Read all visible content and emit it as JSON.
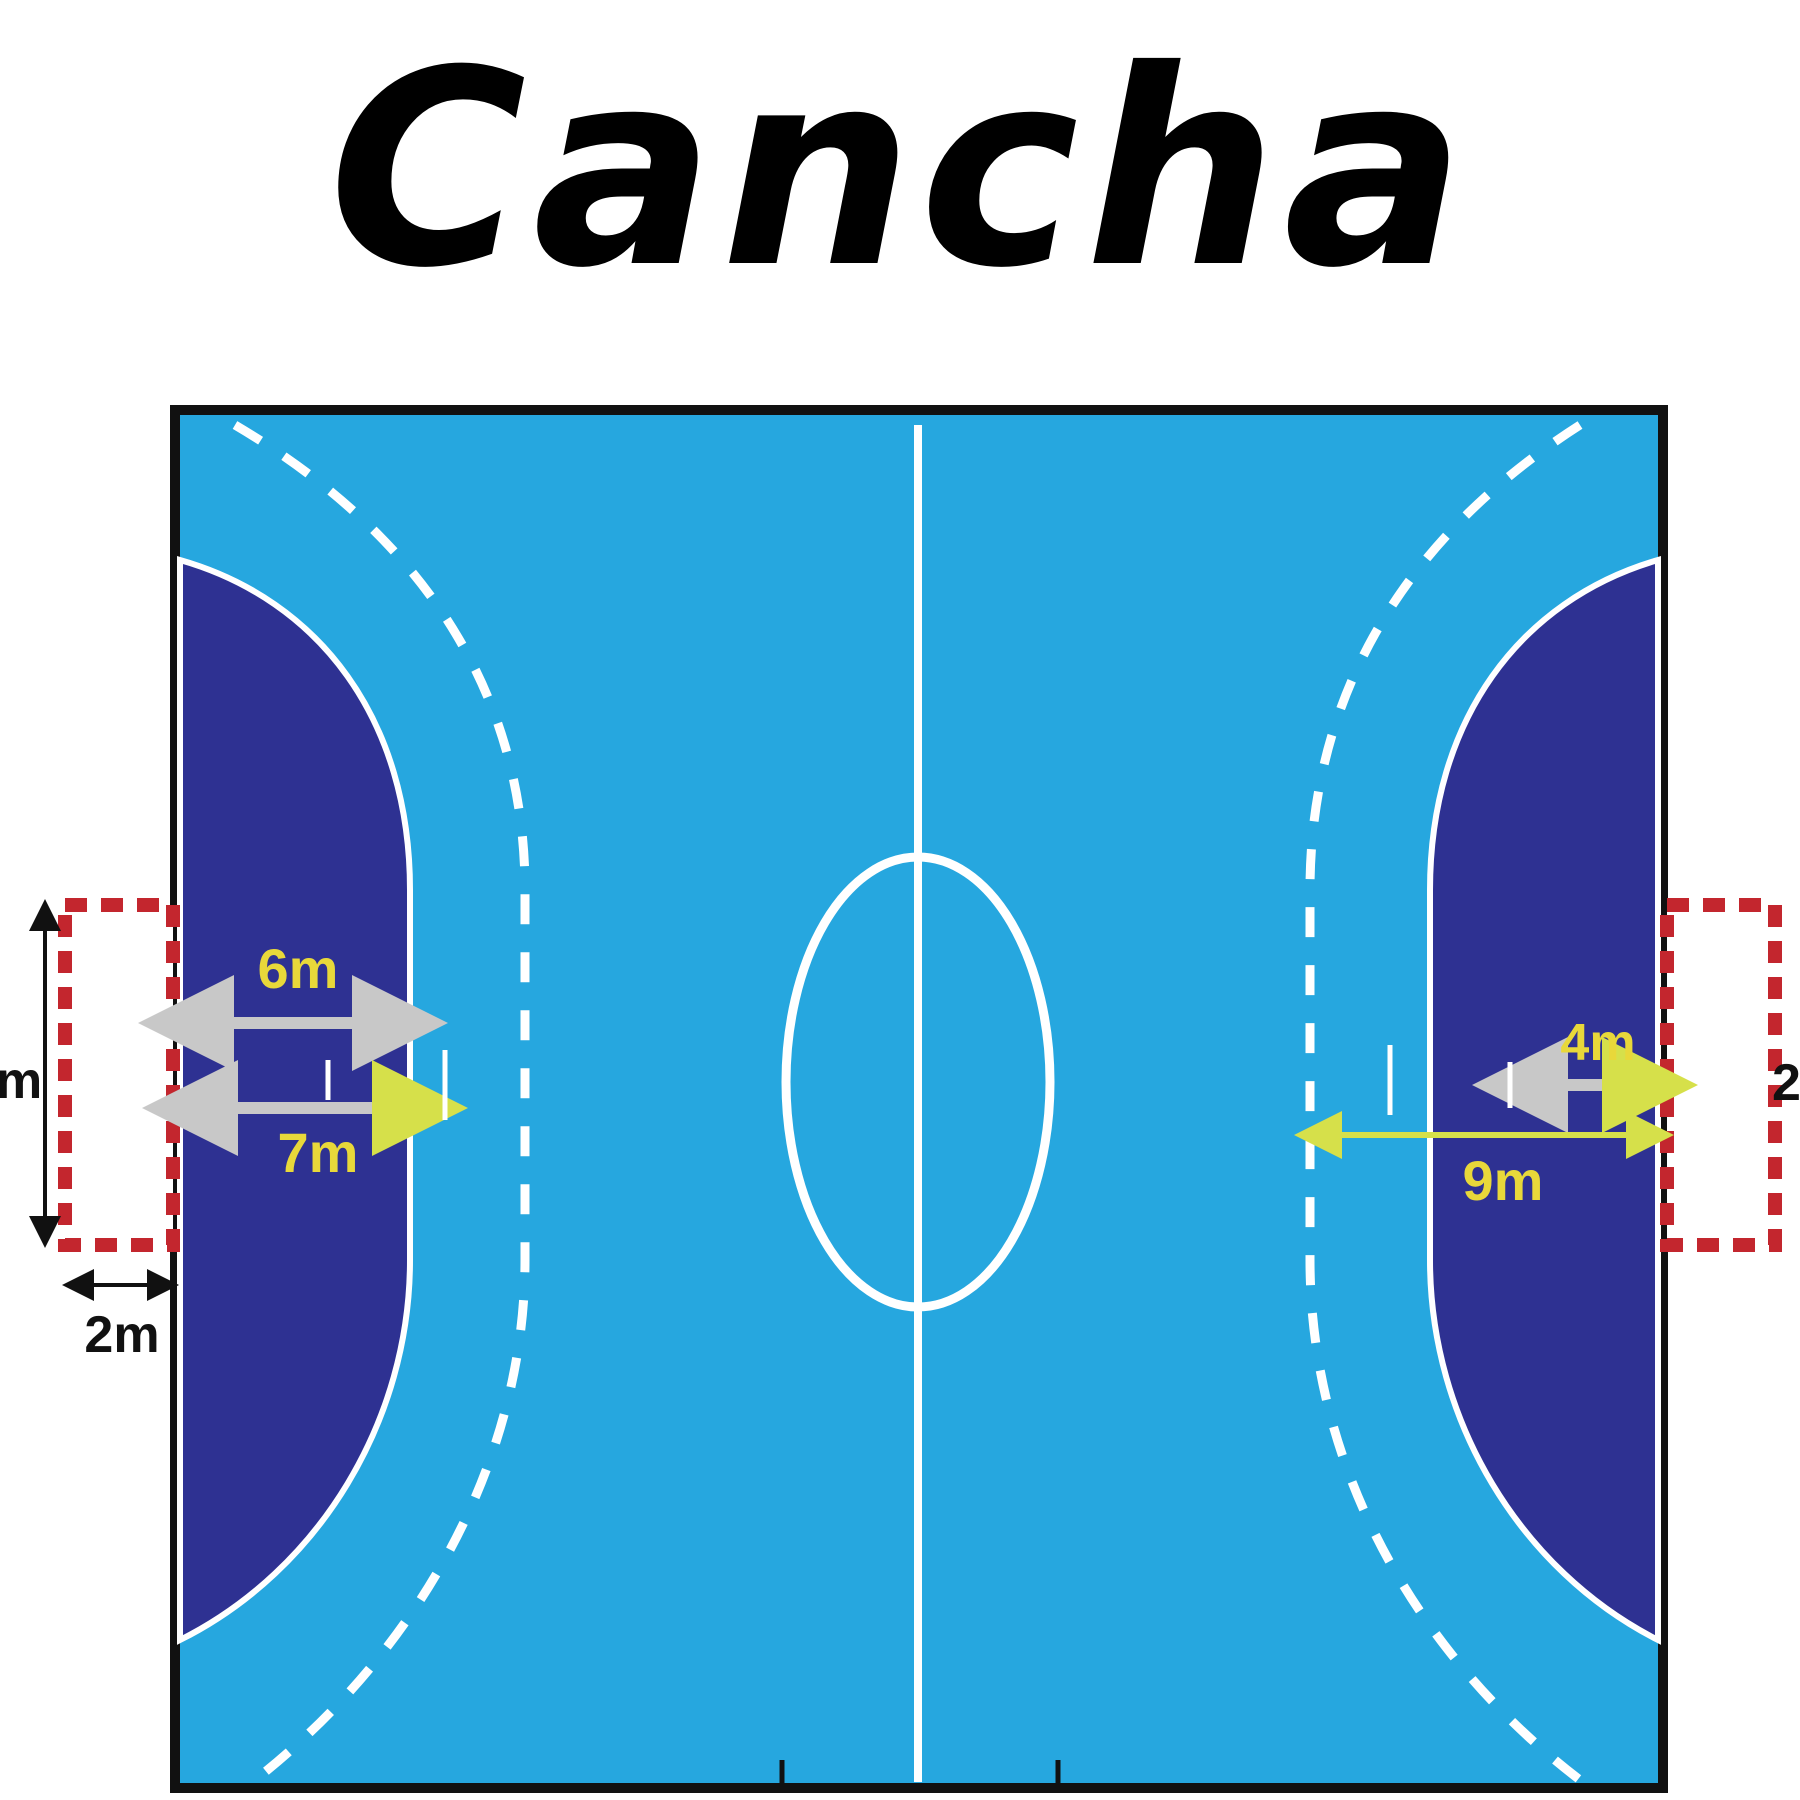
{
  "title": "Cancha",
  "colors": {
    "court": "#26a7df",
    "goal_area": "#2e3192",
    "lines": "#ffffff",
    "border": "#111111",
    "goal_red": "#c3262e",
    "goal_gray": "#bdbdbd",
    "label_yellow": "#e8d83a",
    "arrow_gray": "#c8c8c8",
    "arrow_yellow": "#d6e04a"
  },
  "labels": {
    "six_m": "6m",
    "seven_m": "7m",
    "two_m": "2m",
    "three_m_partial": "m",
    "four_m": "4m",
    "nine_m": "9m",
    "right_partial": "2"
  }
}
